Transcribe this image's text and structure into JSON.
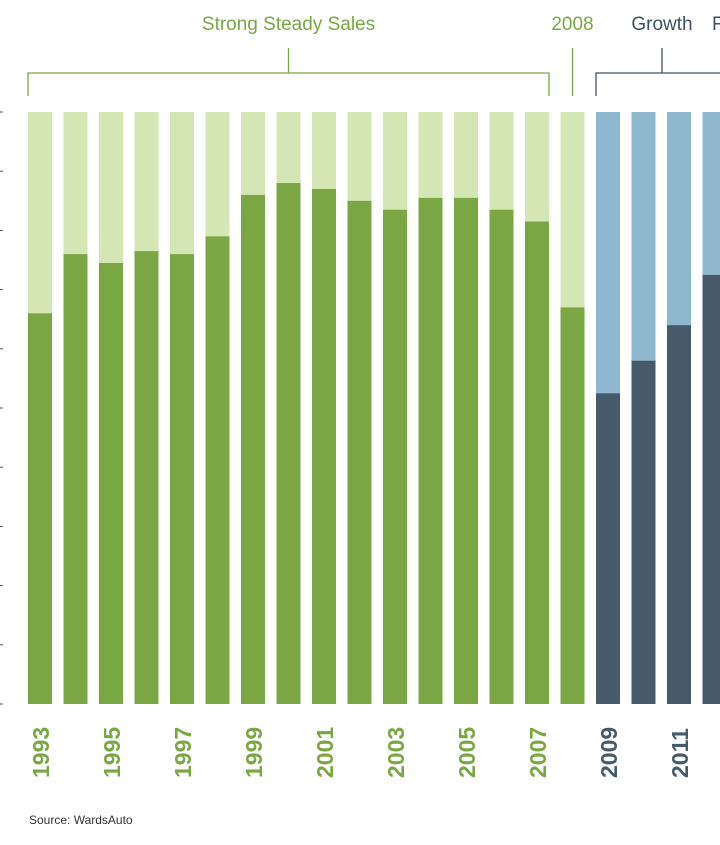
{
  "chart_data": {
    "type": "bar",
    "stacked_to_full": true,
    "categories": [
      "1993",
      "1994",
      "1995",
      "1996",
      "1997",
      "1998",
      "1999",
      "2000",
      "2001",
      "2002",
      "2003",
      "2004",
      "2005",
      "2006",
      "2007",
      "2008",
      "2009",
      "2010",
      "2011",
      "2012"
    ],
    "tick_labels": [
      "1993",
      "1995",
      "1997",
      "1999",
      "2001",
      "2003",
      "2005",
      "2007",
      "2009",
      "2011"
    ],
    "series": [
      {
        "values": [
          0.66,
          0.76,
          0.745,
          0.765,
          0.76,
          0.79,
          0.86,
          0.88,
          0.87,
          0.85,
          0.835,
          0.855,
          0.855,
          0.835,
          0.815,
          0.67,
          0.525,
          0.58,
          0.64,
          0.725
        ]
      }
    ],
    "ylim": [
      0,
      1
    ],
    "periods": [
      {
        "label": "Strong Steady Sales",
        "from": "1993",
        "to": "2007",
        "color": "#7aa644"
      },
      {
        "label": "2008",
        "from": "2008",
        "to": "2008",
        "color": "#7aa644"
      },
      {
        "label": "Growth",
        "from": "2009",
        "to": "2012",
        "color": "#3f5263"
      },
      {
        "label": "F",
        "from": "2012",
        "to": "2012",
        "color": "#3f5263"
      }
    ],
    "colors": {
      "early_dark": "#7aa644",
      "early_light": "#d4e6b3",
      "late_dark": "#475a6a",
      "late_light": "#8fb8cf",
      "bracket_green": "#7aa644",
      "bracket_blue": "#3f5263"
    },
    "xlabel": "",
    "ylabel": ""
  },
  "source": "Source: WardsAuto"
}
